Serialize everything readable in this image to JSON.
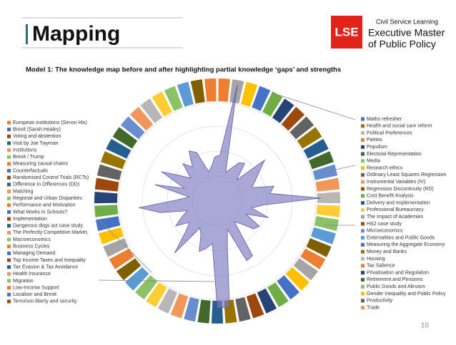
{
  "header": {
    "title": "Mapping",
    "subtitle": "Model 1: The knowledge map before and after highlighting partial knowledge ‘gaps’ and strengths",
    "logo": {
      "mark": "LSE",
      "org": "Civil Service Learning",
      "programme_line1": "Executive Master",
      "programme_line2": "of Public Policy"
    }
  },
  "legend_left": [
    "European institutions (Simon Hix)",
    "Brexit (Sarah Healey)",
    "Voting and abstention",
    "Visit by Joe Twyman",
    "Institutions",
    "Brexit / Trump",
    "Measuring causal chains",
    "Counterfactuals",
    "Randomised Control Trials (RCTs)",
    "Difference in Differences (DD)",
    "Matching",
    "Regional and Urban Disparities",
    "Performance and Motivation",
    "What Works in Schools?",
    "Implementation",
    "Dangerous dogs act case study",
    "The Perfectly Competitive Market,",
    "Macroeconomics",
    "Business Cycles",
    "Managing Demand",
    "Top Income Taxes and Inequality",
    "Tax Evasion & Tax Avoidance",
    "Health Insurance",
    "Migration",
    "Low-Income Support",
    "Localism and Brexit",
    "Terrorism liberty and security"
  ],
  "legend_right": [
    "Maths refresher",
    "Health and social care reform",
    "Political Preferences",
    "Parties",
    "Populism",
    "Electoral Representation",
    "Media",
    "Research ethics",
    "Ordinary Least Squares Regression",
    "Instrumental Variables (IV)",
    "Regression Discontinuity (RD)",
    "Cost Benefit Analysis",
    "Delivery and Implementation",
    "Professional Bureaucracy",
    "The Impact of Academies",
    "HS2 case study",
    "Microeconomics",
    "Externalities and Public Goods",
    "Measuring the Aggregate Economy",
    "Money and Banks",
    "Housing",
    "Tax Salience",
    "Privatisation and Regulation",
    "Retirement and Pensions",
    "Public Goods and Altruism",
    "Gender Inequality and Public Policy",
    "Productivity",
    "Trade"
  ],
  "footer": {
    "page_number": "10"
  }
}
